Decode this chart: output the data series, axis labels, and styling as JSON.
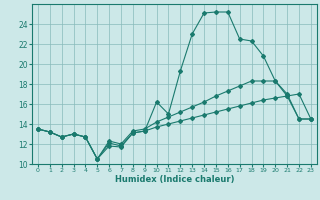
{
  "xlabel": "Humidex (Indice chaleur)",
  "bg_color": "#cce8e8",
  "grid_color": "#88bbbb",
  "line_color": "#1a7a6e",
  "xlim": [
    -0.5,
    23.5
  ],
  "ylim": [
    10,
    26
  ],
  "yticks": [
    10,
    12,
    14,
    16,
    18,
    20,
    22,
    24
  ],
  "xticks": [
    0,
    1,
    2,
    3,
    4,
    5,
    6,
    7,
    8,
    9,
    10,
    11,
    12,
    13,
    14,
    15,
    16,
    17,
    18,
    19,
    20,
    21,
    22,
    23
  ],
  "line1_x": [
    0,
    1,
    2,
    3,
    4,
    5,
    6,
    7,
    8,
    9,
    10,
    11,
    12,
    13,
    14,
    15,
    16,
    17,
    18,
    19,
    20,
    21,
    22,
    23
  ],
  "line1_y": [
    13.5,
    13.2,
    12.7,
    13.0,
    12.7,
    10.5,
    11.8,
    11.7,
    13.1,
    13.3,
    16.2,
    15.0,
    19.3,
    23.0,
    25.1,
    25.2,
    25.2,
    22.5,
    22.3,
    20.8,
    18.3,
    17.0,
    14.5,
    14.5
  ],
  "line2_x": [
    0,
    1,
    2,
    3,
    4,
    5,
    6,
    7,
    8,
    9,
    10,
    11,
    12,
    13,
    14,
    15,
    16,
    17,
    18,
    19,
    20,
    21,
    22,
    23
  ],
  "line2_y": [
    13.5,
    13.2,
    12.7,
    13.0,
    12.7,
    10.5,
    12.3,
    12.0,
    13.3,
    13.5,
    14.2,
    14.7,
    15.2,
    15.7,
    16.2,
    16.8,
    17.3,
    17.8,
    18.3,
    18.3,
    18.3,
    16.8,
    14.5,
    14.5
  ],
  "line3_x": [
    0,
    1,
    2,
    3,
    4,
    5,
    6,
    7,
    8,
    9,
    10,
    11,
    12,
    13,
    14,
    15,
    16,
    17,
    18,
    19,
    20,
    21,
    22,
    23
  ],
  "line3_y": [
    13.5,
    13.2,
    12.7,
    13.0,
    12.7,
    10.5,
    12.1,
    11.8,
    13.1,
    13.3,
    13.7,
    14.0,
    14.3,
    14.6,
    14.9,
    15.2,
    15.5,
    15.8,
    16.1,
    16.4,
    16.6,
    16.8,
    17.0,
    14.5
  ]
}
